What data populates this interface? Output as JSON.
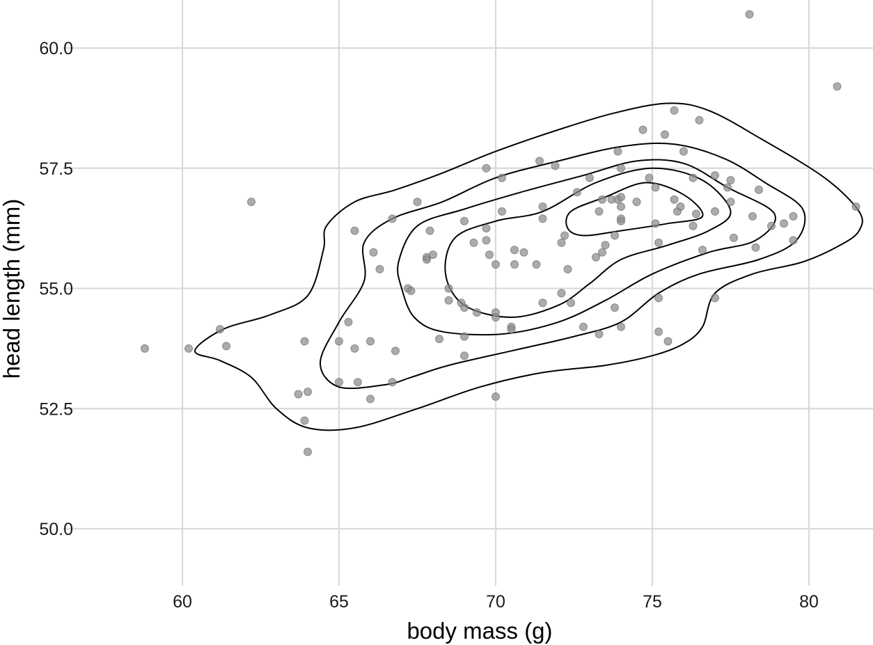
{
  "chart_data": {
    "type": "scatter",
    "xlabel": "body mass (g)",
    "ylabel": "head length (mm)",
    "xlim": [
      56.5,
      81.7
    ],
    "ylim": [
      48.8,
      60.8
    ],
    "x_ticks": [
      60,
      65,
      70,
      75,
      80
    ],
    "y_ticks": [
      50.0,
      52.5,
      55.0,
      57.5,
      60.0
    ],
    "x_tick_labels": [
      "60",
      "65",
      "70",
      "75",
      "80"
    ],
    "y_tick_labels": [
      "50.0",
      "52.5",
      "55.0",
      "57.5",
      "60.0"
    ],
    "grid": true,
    "point_color": "#8c8c8c",
    "contour_color": "#000000",
    "series": [
      {
        "points": [
          [
            58.8,
            53.75
          ],
          [
            60.2,
            53.75
          ],
          [
            61.2,
            54.15
          ],
          [
            61.4,
            53.8
          ],
          [
            62.2,
            56.8
          ],
          [
            63.7,
            52.8
          ],
          [
            63.9,
            53.9
          ],
          [
            64.0,
            52.85
          ],
          [
            63.9,
            52.25
          ],
          [
            64.0,
            51.6
          ],
          [
            65.0,
            53.9
          ],
          [
            65.0,
            53.05
          ],
          [
            65.3,
            54.3
          ],
          [
            65.5,
            56.2
          ],
          [
            65.5,
            53.75
          ],
          [
            65.6,
            53.05
          ],
          [
            66.0,
            53.9
          ],
          [
            66.0,
            52.7
          ],
          [
            66.1,
            55.75
          ],
          [
            66.3,
            55.4
          ],
          [
            66.7,
            56.45
          ],
          [
            66.8,
            53.7
          ],
          [
            66.7,
            53.05
          ],
          [
            67.2,
            55.0
          ],
          [
            67.3,
            54.95
          ],
          [
            67.5,
            56.8
          ],
          [
            67.8,
            55.65
          ],
          [
            67.8,
            55.6
          ],
          [
            67.9,
            56.2
          ],
          [
            68.0,
            55.7
          ],
          [
            68.2,
            53.95
          ],
          [
            68.5,
            55.0
          ],
          [
            68.5,
            54.75
          ],
          [
            68.9,
            54.7
          ],
          [
            69.0,
            54.6
          ],
          [
            69.0,
            56.4
          ],
          [
            69.0,
            54.0
          ],
          [
            69.0,
            53.6
          ],
          [
            69.3,
            55.95
          ],
          [
            69.4,
            54.5
          ],
          [
            69.7,
            57.5
          ],
          [
            69.7,
            56.25
          ],
          [
            69.7,
            56.0
          ],
          [
            69.8,
            55.7
          ],
          [
            70.0,
            55.5
          ],
          [
            70.0,
            54.5
          ],
          [
            70.0,
            54.4
          ],
          [
            70.0,
            52.75
          ],
          [
            70.2,
            56.6
          ],
          [
            70.2,
            57.3
          ],
          [
            70.5,
            54.2
          ],
          [
            70.5,
            54.15
          ],
          [
            70.6,
            55.8
          ],
          [
            70.6,
            55.5
          ],
          [
            70.9,
            55.75
          ],
          [
            71.3,
            55.5
          ],
          [
            71.4,
            57.65
          ],
          [
            71.5,
            56.7
          ],
          [
            71.5,
            56.45
          ],
          [
            71.5,
            54.7
          ],
          [
            71.9,
            57.55
          ],
          [
            72.1,
            55.95
          ],
          [
            72.1,
            54.9
          ],
          [
            72.2,
            56.1
          ],
          [
            72.3,
            55.4
          ],
          [
            72.4,
            54.7
          ],
          [
            72.6,
            57.0
          ],
          [
            72.8,
            54.2
          ],
          [
            73.0,
            57.3
          ],
          [
            73.2,
            55.65
          ],
          [
            73.3,
            56.6
          ],
          [
            73.3,
            54.05
          ],
          [
            73.4,
            56.85
          ],
          [
            73.4,
            55.75
          ],
          [
            73.5,
            55.9
          ],
          [
            73.7,
            56.85
          ],
          [
            73.8,
            56.1
          ],
          [
            73.8,
            54.6
          ],
          [
            73.9,
            57.85
          ],
          [
            73.9,
            56.85
          ],
          [
            74.0,
            56.9
          ],
          [
            74.0,
            57.5
          ],
          [
            74.0,
            56.7
          ],
          [
            74.0,
            56.45
          ],
          [
            74.0,
            56.4
          ],
          [
            74.0,
            54.2
          ],
          [
            74.5,
            56.8
          ],
          [
            74.7,
            58.3
          ],
          [
            74.9,
            57.3
          ],
          [
            75.1,
            57.1
          ],
          [
            75.1,
            56.35
          ],
          [
            75.2,
            55.95
          ],
          [
            75.2,
            54.8
          ],
          [
            75.2,
            54.1
          ],
          [
            75.4,
            58.2
          ],
          [
            75.5,
            53.9
          ],
          [
            75.7,
            58.7
          ],
          [
            75.7,
            56.85
          ],
          [
            75.8,
            56.6
          ],
          [
            75.9,
            56.7
          ],
          [
            76.0,
            57.85
          ],
          [
            76.3,
            57.3
          ],
          [
            76.3,
            56.3
          ],
          [
            76.4,
            56.55
          ],
          [
            76.5,
            58.5
          ],
          [
            76.6,
            55.8
          ],
          [
            77.0,
            57.35
          ],
          [
            77.0,
            56.6
          ],
          [
            77.0,
            54.8
          ],
          [
            77.4,
            57.1
          ],
          [
            77.5,
            57.25
          ],
          [
            77.5,
            56.8
          ],
          [
            77.6,
            56.05
          ],
          [
            78.1,
            60.7
          ],
          [
            78.2,
            56.5
          ],
          [
            78.3,
            55.85
          ],
          [
            78.4,
            57.05
          ],
          [
            78.8,
            56.3
          ],
          [
            79.2,
            56.35
          ],
          [
            79.5,
            56.5
          ],
          [
            79.5,
            56.0
          ],
          [
            80.9,
            59.2
          ],
          [
            81.5,
            56.7
          ]
        ]
      }
    ],
    "density_contours": [
      [
        [
          60.4,
          53.7
        ],
        [
          61.3,
          54.15
        ],
        [
          62.8,
          54.45
        ],
        [
          64.0,
          54.85
        ],
        [
          64.5,
          55.8
        ],
        [
          64.6,
          56.3
        ],
        [
          65.5,
          56.8
        ],
        [
          66.8,
          57.05
        ],
        [
          68.3,
          57.4
        ],
        [
          70.0,
          57.85
        ],
        [
          72.0,
          58.3
        ],
        [
          73.8,
          58.65
        ],
        [
          75.5,
          58.85
        ],
        [
          76.8,
          58.7
        ],
        [
          78.5,
          58.1
        ],
        [
          80.5,
          57.3
        ],
        [
          81.6,
          56.6
        ],
        [
          81.6,
          56.2
        ],
        [
          81.0,
          55.9
        ],
        [
          79.8,
          55.55
        ],
        [
          78.2,
          55.3
        ],
        [
          77.0,
          54.9
        ],
        [
          76.6,
          54.2
        ],
        [
          76.0,
          53.85
        ],
        [
          75.0,
          53.6
        ],
        [
          73.5,
          53.4
        ],
        [
          71.5,
          53.25
        ],
        [
          69.5,
          52.95
        ],
        [
          67.5,
          52.5
        ],
        [
          65.5,
          52.1
        ],
        [
          64.0,
          52.1
        ],
        [
          63.0,
          52.5
        ],
        [
          62.2,
          53.15
        ],
        [
          61.2,
          53.5
        ],
        [
          60.4,
          53.7
        ]
      ],
      [
        [
          64.4,
          53.45
        ],
        [
          65.0,
          54.3
        ],
        [
          65.8,
          55.15
        ],
        [
          65.8,
          55.95
        ],
        [
          66.7,
          56.45
        ],
        [
          68.3,
          56.8
        ],
        [
          70.0,
          57.3
        ],
        [
          72.0,
          57.65
        ],
        [
          74.0,
          57.95
        ],
        [
          75.7,
          58.0
        ],
        [
          77.3,
          57.7
        ],
        [
          78.6,
          57.2
        ],
        [
          79.8,
          56.65
        ],
        [
          79.6,
          56.0
        ],
        [
          78.4,
          55.6
        ],
        [
          76.5,
          55.3
        ],
        [
          75.2,
          54.9
        ],
        [
          74.0,
          54.3
        ],
        [
          72.5,
          54.0
        ],
        [
          70.5,
          53.7
        ],
        [
          68.5,
          53.4
        ],
        [
          67.3,
          53.15
        ],
        [
          66.5,
          53.0
        ],
        [
          65.0,
          52.95
        ],
        [
          64.4,
          53.45
        ]
      ],
      [
        [
          67.0,
          55.0
        ],
        [
          66.9,
          55.55
        ],
        [
          67.5,
          56.3
        ],
        [
          69.0,
          56.65
        ],
        [
          70.8,
          57.0
        ],
        [
          72.8,
          57.35
        ],
        [
          74.5,
          57.65
        ],
        [
          76.0,
          57.6
        ],
        [
          77.4,
          57.1
        ],
        [
          78.9,
          56.55
        ],
        [
          78.3,
          56.0
        ],
        [
          76.8,
          55.75
        ],
        [
          75.0,
          55.3
        ],
        [
          73.5,
          54.75
        ],
        [
          72.0,
          54.3
        ],
        [
          70.2,
          54.05
        ],
        [
          68.3,
          54.1
        ],
        [
          67.4,
          54.4
        ],
        [
          67.0,
          55.0
        ]
      ],
      [
        [
          68.4,
          55.3
        ],
        [
          68.7,
          56.05
        ],
        [
          70.0,
          56.4
        ],
        [
          71.5,
          56.6
        ],
        [
          73.2,
          57.2
        ],
        [
          75.0,
          57.5
        ],
        [
          76.6,
          57.25
        ],
        [
          77.5,
          56.6
        ],
        [
          76.8,
          56.2
        ],
        [
          75.5,
          55.9
        ],
        [
          74.0,
          55.6
        ],
        [
          73.0,
          55.1
        ],
        [
          72.0,
          54.65
        ],
        [
          70.5,
          54.4
        ],
        [
          69.0,
          54.65
        ],
        [
          68.4,
          55.3
        ]
      ],
      [
        [
          72.3,
          56.25
        ],
        [
          72.4,
          56.6
        ],
        [
          73.5,
          56.9
        ],
        [
          74.8,
          57.2
        ],
        [
          76.0,
          56.95
        ],
        [
          76.6,
          56.5
        ],
        [
          75.5,
          56.35
        ],
        [
          74.0,
          56.2
        ],
        [
          72.8,
          56.1
        ],
        [
          72.3,
          56.25
        ]
      ]
    ]
  }
}
